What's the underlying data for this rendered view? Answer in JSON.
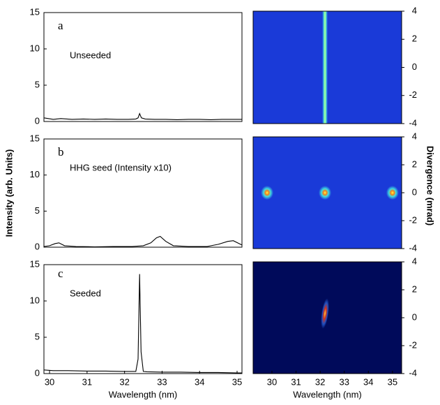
{
  "chart_data": [
    {
      "type": "line",
      "panel": "a",
      "annotation": "Unseeded",
      "color": "#000000",
      "x": [
        29.85,
        30.1,
        30.3,
        30.6,
        30.9,
        31.2,
        31.5,
        31.8,
        32.1,
        32.3,
        32.36,
        32.4,
        32.45,
        32.55,
        32.8,
        33.1,
        33.4,
        33.7,
        34.0,
        34.3,
        34.6,
        34.9,
        35.13
      ],
      "values": [
        0.5,
        0.3,
        0.4,
        0.3,
        0.35,
        0.3,
        0.35,
        0.3,
        0.3,
        0.35,
        0.5,
        1.1,
        0.5,
        0.35,
        0.3,
        0.3,
        0.25,
        0.3,
        0.3,
        0.25,
        0.3,
        0.3,
        0.3
      ],
      "xlim": [
        29.85,
        35.13
      ],
      "ylim": [
        0,
        15
      ],
      "yticks": [
        0,
        5,
        10,
        15
      ]
    },
    {
      "type": "line",
      "panel": "b",
      "annotation": "HHG seed (Intensity x10)",
      "color": "#000000",
      "ylabel": "Intensity (arb. Units)",
      "x": [
        29.85,
        30.0,
        30.15,
        30.25,
        30.4,
        30.7,
        31.2,
        31.7,
        32.2,
        32.5,
        32.7,
        32.85,
        32.95,
        33.1,
        33.3,
        33.7,
        34.2,
        34.5,
        34.75,
        34.9,
        35.05,
        35.13
      ],
      "values": [
        0.1,
        0.2,
        0.5,
        0.6,
        0.2,
        0.1,
        0.05,
        0.1,
        0.1,
        0.2,
        0.6,
        1.3,
        1.5,
        0.8,
        0.2,
        0.1,
        0.1,
        0.4,
        0.8,
        0.9,
        0.5,
        0.3
      ],
      "xlim": [
        29.85,
        35.13
      ],
      "ylim": [
        0,
        15
      ],
      "yticks": [
        0,
        5,
        10,
        15
      ]
    },
    {
      "type": "line",
      "panel": "c",
      "annotation": "Seeded",
      "color": "#000000",
      "xlabel": "Wavelength (nm)",
      "x": [
        29.85,
        30.1,
        30.5,
        31.0,
        31.5,
        32.0,
        32.3,
        32.36,
        32.4,
        32.44,
        32.5,
        32.6,
        33.0,
        33.5,
        34.0,
        34.5,
        35.0,
        35.13
      ],
      "values": [
        0.5,
        0.4,
        0.4,
        0.35,
        0.35,
        0.3,
        0.3,
        2,
        13.7,
        3,
        0.3,
        0.25,
        0.2,
        0.2,
        0.15,
        0.15,
        0.1,
        0.1
      ],
      "xlim": [
        29.85,
        35.13
      ],
      "ylim": [
        0,
        15
      ],
      "yticks": [
        0,
        5,
        10,
        15
      ],
      "xticks": [
        30,
        31,
        32,
        33,
        34,
        35
      ]
    },
    {
      "type": "image",
      "shape": "streak",
      "background": "#1a3ad8",
      "x": [
        32.2
      ],
      "values": [
        0
      ],
      "xlim": [
        29.22,
        35.38
      ],
      "ylim": [
        -4,
        4
      ],
      "yticks": [
        -4,
        -2,
        0,
        2,
        4
      ]
    },
    {
      "type": "image",
      "shape": "spot",
      "background": "#1a3ad8",
      "ylabel": "Divergence (mrad)",
      "x": [
        29.8,
        32.2,
        35.0
      ],
      "values": [
        0,
        0,
        0
      ],
      "xlim": [
        29.22,
        35.38
      ],
      "ylim": [
        -4,
        4
      ],
      "yticks": [
        -4,
        -2,
        0,
        2,
        4
      ]
    },
    {
      "type": "image",
      "shape": "tall-spot",
      "background": "#000a5a",
      "xlabel": "Wavelength (nm)",
      "x": [
        32.2
      ],
      "values": [
        0.3
      ],
      "xlim": [
        29.22,
        35.38
      ],
      "ylim": [
        -4,
        4
      ],
      "yticks": [
        -4,
        -2,
        0,
        2,
        4
      ],
      "xticks": [
        30,
        31,
        32,
        33,
        34,
        35
      ]
    }
  ]
}
